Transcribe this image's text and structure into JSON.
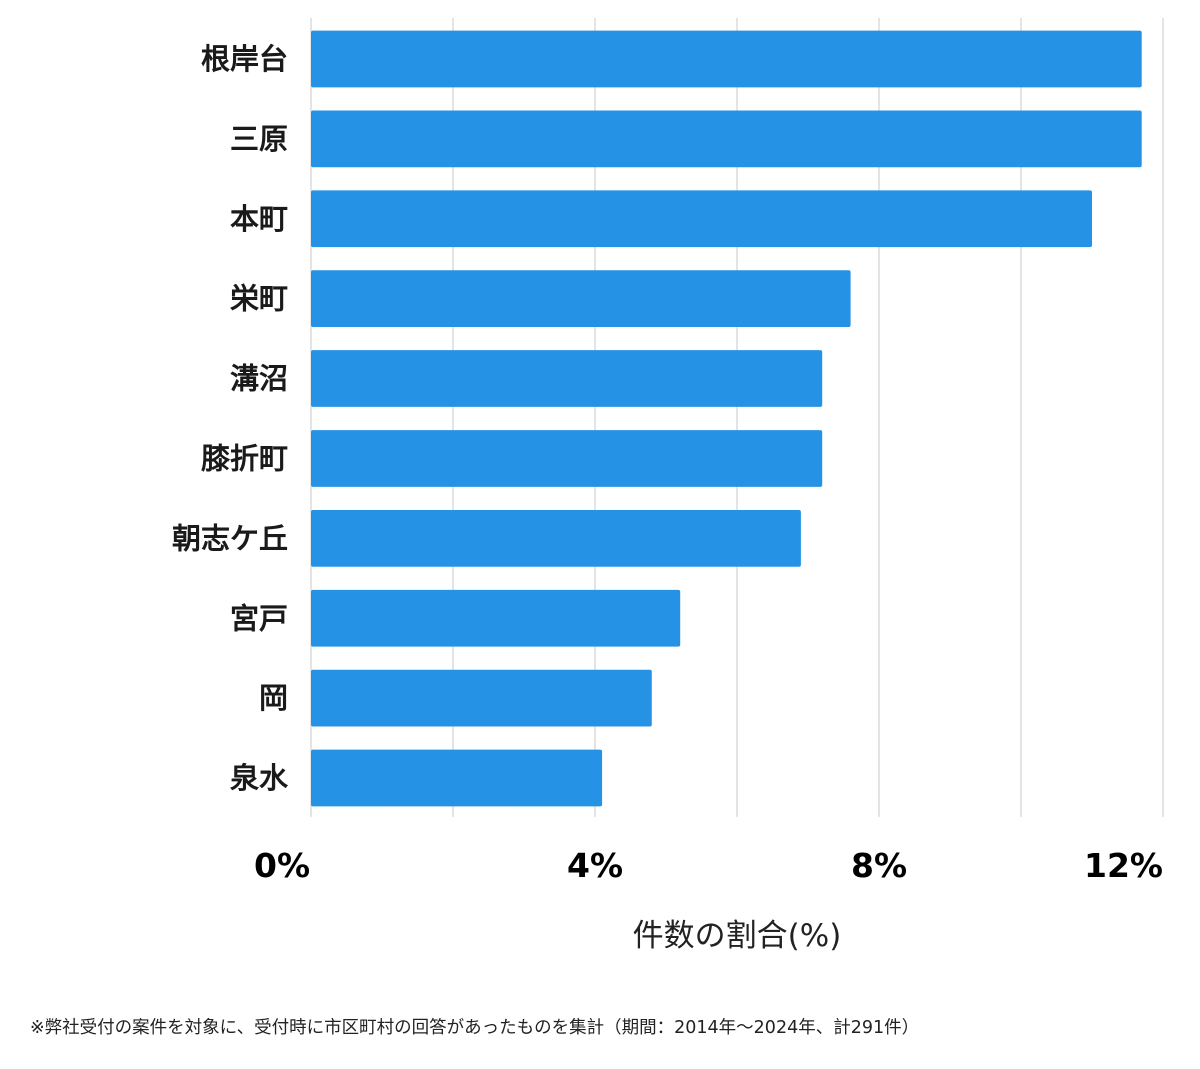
{
  "chart_data": {
    "type": "bar",
    "orientation": "horizontal",
    "categories": [
      "根岸台",
      "三原",
      "本町",
      "栄町",
      "溝沼",
      "膝折町",
      "朝志ケ丘",
      "宮戸",
      "岡",
      "泉水"
    ],
    "values": [
      11.7,
      11.7,
      11.0,
      7.6,
      7.2,
      7.2,
      6.9,
      5.2,
      4.8,
      4.1
    ],
    "xlim": [
      0,
      12
    ],
    "grid_values": [
      0,
      2,
      4,
      6,
      8,
      10,
      12
    ],
    "tick_values": [
      0,
      4,
      8,
      12
    ],
    "tick_labels": [
      "0%",
      "4%",
      "8%",
      "12%"
    ],
    "xlabel": "件数の割合(%)",
    "ylabel": "",
    "bar_color": "#2592e6",
    "grid_color": "#dcdcdc"
  },
  "footnote": "※弊社受付の案件を対象に、受付時に市区町村の回答があったものを集計（期間：2014年～2024年、計291件）"
}
